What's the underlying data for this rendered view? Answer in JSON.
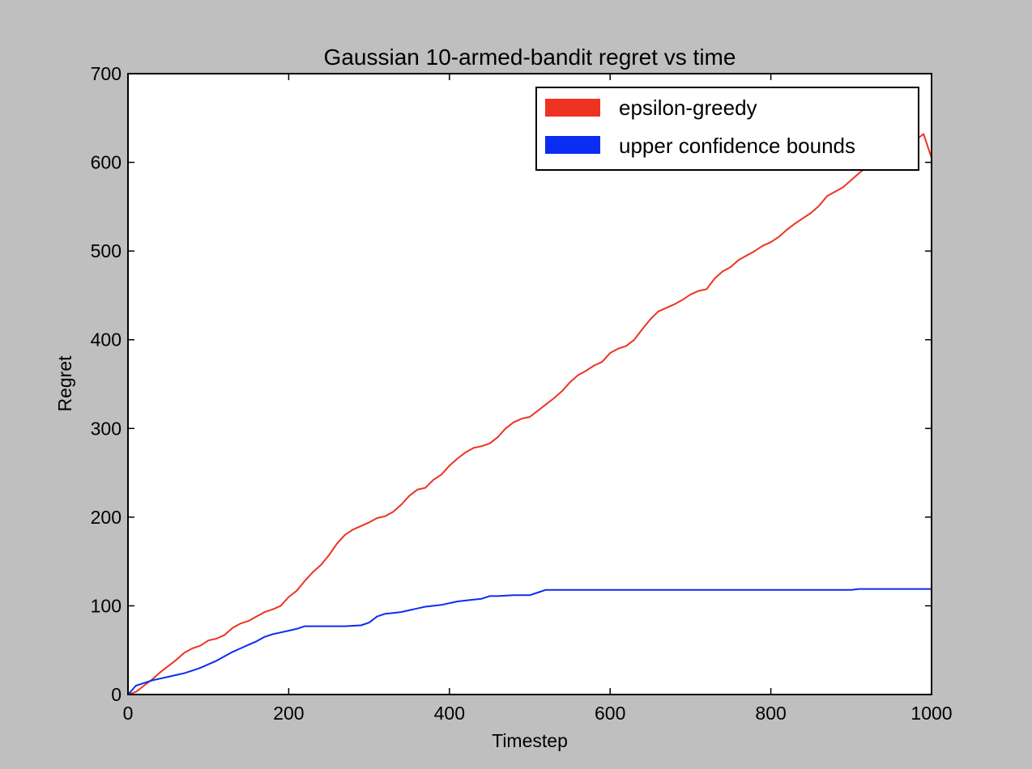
{
  "chart_data": {
    "type": "line",
    "title": "Gaussian 10-armed-bandit regret vs time",
    "xlabel": "Timestep",
    "ylabel": "Regret",
    "xlim": [
      0,
      1000
    ],
    "ylim": [
      0,
      700
    ],
    "xticks": [
      0,
      200,
      400,
      600,
      800,
      1000
    ],
    "yticks": [
      0,
      100,
      200,
      300,
      400,
      500,
      600,
      700
    ],
    "grid": false,
    "legend_position": "top-right",
    "series": [
      {
        "name": "epsilon-greedy",
        "color": "#ee3322",
        "x": [
          0,
          10,
          20,
          30,
          40,
          50,
          60,
          70,
          80,
          90,
          100,
          110,
          120,
          130,
          140,
          150,
          160,
          170,
          180,
          190,
          200,
          210,
          220,
          230,
          240,
          250,
          260,
          270,
          280,
          290,
          300,
          310,
          320,
          330,
          340,
          350,
          360,
          370,
          380,
          390,
          400,
          410,
          420,
          430,
          440,
          450,
          460,
          470,
          480,
          490,
          500,
          510,
          520,
          530,
          540,
          550,
          560,
          570,
          580,
          590,
          600,
          610,
          620,
          630,
          640,
          650,
          660,
          670,
          680,
          690,
          700,
          710,
          720,
          730,
          740,
          750,
          760,
          770,
          780,
          790,
          800,
          810,
          820,
          830,
          840,
          850,
          860,
          870,
          880,
          890,
          900,
          910,
          920,
          930,
          940,
          950,
          960,
          970,
          980,
          990,
          1000
        ],
        "values": [
          0,
          3,
          10,
          17,
          25,
          32,
          39,
          47,
          52,
          55,
          61,
          63,
          67,
          75,
          80,
          83,
          88,
          93,
          96,
          100,
          110,
          117,
          128,
          138,
          146,
          157,
          170,
          180,
          186,
          190,
          194,
          199,
          201,
          206,
          214,
          224,
          231,
          233,
          242,
          248,
          258,
          266,
          273,
          278,
          280,
          283,
          290,
          300,
          307,
          311,
          313,
          320,
          327,
          334,
          342,
          352,
          360,
          365,
          371,
          375,
          385,
          390,
          393,
          400,
          412,
          423,
          432,
          436,
          440,
          445,
          451,
          455,
          457,
          469,
          477,
          482,
          490,
          495,
          500,
          506,
          510,
          516,
          524,
          531,
          537,
          543,
          551,
          562,
          567,
          572,
          580,
          588,
          595,
          602,
          607,
          610,
          616,
          620,
          625,
          632,
          605
        ]
      },
      {
        "name": "upper confidence bounds",
        "color": "#0b2cf2",
        "x": [
          0,
          5,
          10,
          20,
          30,
          40,
          50,
          60,
          70,
          80,
          90,
          100,
          110,
          120,
          130,
          140,
          150,
          160,
          170,
          180,
          190,
          200,
          210,
          220,
          230,
          250,
          270,
          290,
          300,
          310,
          320,
          330,
          340,
          350,
          360,
          370,
          380,
          390,
          400,
          410,
          420,
          430,
          440,
          450,
          460,
          480,
          500,
          510,
          520,
          600,
          700,
          800,
          900,
          910,
          1000
        ],
        "values": [
          0,
          5,
          10,
          13,
          16,
          18,
          20,
          22,
          24,
          27,
          30,
          34,
          38,
          43,
          48,
          52,
          56,
          60,
          65,
          68,
          70,
          72,
          74,
          77,
          77,
          77,
          77,
          78,
          81,
          88,
          91,
          92,
          93,
          95,
          97,
          99,
          100,
          101,
          103,
          105,
          106,
          107,
          108,
          111,
          111,
          112,
          112,
          115,
          118,
          118,
          118,
          118,
          118,
          119,
          119
        ]
      }
    ]
  }
}
